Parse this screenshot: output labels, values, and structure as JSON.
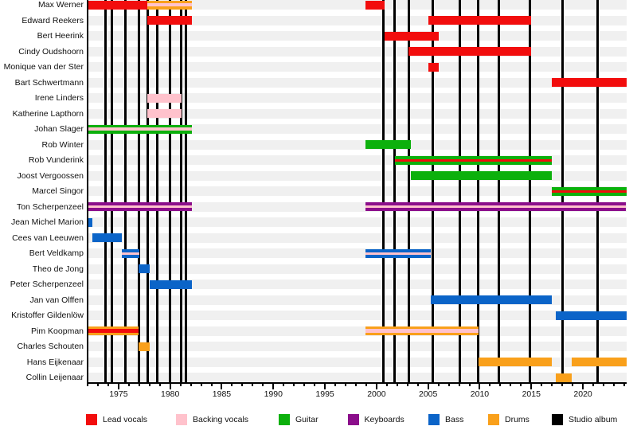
{
  "chart_data": {
    "type": "timeline",
    "description": "Band members timeline (Gantt-style) with studio album release lines",
    "axis": {
      "start_year": 1972,
      "end_year": 2024.2,
      "major_ticks": [
        1975,
        1980,
        1985,
        1990,
        1995,
        2000,
        2005,
        2010,
        2015,
        2020
      ],
      "minor_tick_increment": 1,
      "tick_label_format": "yyyy",
      "orientation": "horizontal"
    },
    "colors": {
      "Lead vocals": "#f20d0d",
      "Backing vocals": "#ffc2cc",
      "Guitar": "#0cb00c",
      "Keyboards": "#8b0e8b",
      "Bass": "#0b64c8",
      "Drums": "#f9a01b",
      "Studio album": "#000000",
      "row_track": "#f0f0f0"
    },
    "legend": [
      {
        "label": "Lead vocals"
      },
      {
        "label": "Backing vocals"
      },
      {
        "label": "Guitar"
      },
      {
        "label": "Keyboards"
      },
      {
        "label": "Bass"
      },
      {
        "label": "Drums"
      },
      {
        "label": "Studio album"
      }
    ],
    "members": [
      {
        "name": "Max Werner",
        "segments": [
          {
            "from": 1972.0,
            "till": 1977.82,
            "role": "Lead vocals"
          },
          {
            "from": 1977.82,
            "till": 1982.1,
            "role": "Drums",
            "stripe": "Backing vocals",
            "stripe_h": 4
          },
          {
            "from": 1998.9,
            "till": 2000.8,
            "role": "Lead vocals"
          }
        ]
      },
      {
        "name": "Edward Reekers",
        "segments": [
          {
            "from": 1977.82,
            "till": 1982.1,
            "role": "Lead vocals"
          },
          {
            "from": 2005.0,
            "till": 2015.0,
            "role": "Lead vocals"
          }
        ]
      },
      {
        "name": "Bert Heerink",
        "segments": [
          {
            "from": 2000.8,
            "till": 2006.0,
            "role": "Lead vocals"
          }
        ]
      },
      {
        "name": "Cindy Oudshoorn",
        "segments": [
          {
            "from": 2003.1,
            "till": 2015.0,
            "role": "Lead vocals"
          }
        ]
      },
      {
        "name": "Monique van der Ster",
        "segments": [
          {
            "from": 2005.0,
            "till": 2006.0,
            "role": "Lead vocals"
          }
        ]
      },
      {
        "name": "Bart Schwertmann",
        "segments": [
          {
            "from": 2016.95,
            "till": 2024.2,
            "role": "Lead vocals"
          }
        ]
      },
      {
        "name": "Irene Linders",
        "segments": [
          {
            "from": 1977.82,
            "till": 1981.12,
            "role": "Backing vocals"
          }
        ]
      },
      {
        "name": "Katherine Lapthorn",
        "segments": [
          {
            "from": 1977.82,
            "till": 1981.12,
            "role": "Backing vocals"
          }
        ]
      },
      {
        "name": "Johan Slager",
        "segments": [
          {
            "from": 1972.0,
            "till": 1982.1,
            "role": "Guitar",
            "stripe": "Backing vocals",
            "stripe_h": 3.5
          }
        ]
      },
      {
        "name": "Rob Winter",
        "segments": [
          {
            "from": 1998.9,
            "till": 2003.3,
            "role": "Guitar"
          }
        ]
      },
      {
        "name": "Rob Vunderink",
        "segments": [
          {
            "from": 2001.8,
            "till": 2016.95,
            "role": "Guitar",
            "stripe": "Lead vocals",
            "stripe_h": 3
          }
        ]
      },
      {
        "name": "Joost Vergoossen",
        "segments": [
          {
            "from": 2003.3,
            "till": 2016.95,
            "role": "Guitar"
          }
        ]
      },
      {
        "name": "Marcel Singor",
        "segments": [
          {
            "from": 2016.95,
            "till": 2024.2,
            "role": "Guitar",
            "stripe": "Lead vocals",
            "stripe_h": 3
          }
        ]
      },
      {
        "name": "Ton Scherpenzeel",
        "segments": [
          {
            "from": 1972.0,
            "till": 1982.1,
            "role": "Keyboards",
            "stripe": "Backing vocals",
            "stripe_h": 3.5
          },
          {
            "from": 1998.9,
            "till": 2024.2,
            "role": "Keyboards",
            "stripe": "Backing vocals",
            "stripe_h": 3.5
          }
        ]
      },
      {
        "name": "Jean Michel Marion",
        "segments": [
          {
            "from": 1972.0,
            "till": 1972.5,
            "role": "Bass"
          }
        ]
      },
      {
        "name": "Cees van Leeuwen",
        "segments": [
          {
            "from": 1972.5,
            "till": 1975.3,
            "role": "Bass"
          }
        ]
      },
      {
        "name": "Bert Veldkamp",
        "segments": [
          {
            "from": 1975.3,
            "till": 1977.0,
            "role": "Bass",
            "stripe": "Backing vocals",
            "stripe_h": 3
          },
          {
            "from": 1998.9,
            "till": 2005.25,
            "role": "Bass",
            "stripe": "Backing vocals",
            "stripe_h": 3
          }
        ]
      },
      {
        "name": "Theo de Jong",
        "segments": [
          {
            "from": 1976.9,
            "till": 1978.05,
            "role": "Bass"
          }
        ]
      },
      {
        "name": "Peter Scherpenzeel",
        "segments": [
          {
            "from": 1978.05,
            "till": 1982.1,
            "role": "Bass"
          }
        ]
      },
      {
        "name": "Jan van Olffen",
        "segments": [
          {
            "from": 2005.25,
            "till": 2017.0,
            "role": "Bass"
          }
        ]
      },
      {
        "name": "Kristoffer Gildenlöw",
        "segments": [
          {
            "from": 2017.4,
            "till": 2024.2,
            "role": "Bass"
          }
        ]
      },
      {
        "name": "Pim Koopman",
        "segments": [
          {
            "from": 1972.0,
            "till": 1976.95,
            "role": "Drums",
            "stripe": "Lead vocals",
            "stripe_h": 5
          },
          {
            "from": 1998.9,
            "till": 2009.85,
            "role": "Drums",
            "stripe": "Backing vocals",
            "stripe_h": 5
          }
        ]
      },
      {
        "name": "Charles Schouten",
        "segments": [
          {
            "from": 1976.9,
            "till": 1978.0,
            "role": "Drums"
          }
        ]
      },
      {
        "name": "Hans Eijkenaar",
        "segments": [
          {
            "from": 2009.85,
            "till": 2017.0,
            "role": "Drums"
          },
          {
            "from": 2018.95,
            "till": 2024.2,
            "role": "Drums"
          }
        ]
      },
      {
        "name": "Collin Leijenaar",
        "segments": [
          {
            "from": 2017.4,
            "till": 2018.95,
            "role": "Drums"
          }
        ]
      }
    ],
    "album_release_lines": [
      1973.7,
      1974.39,
      1975.67,
      1977.01,
      1977.83,
      1978.79,
      1979.99,
      1981.07,
      1981.53,
      2000.68,
      2001.74,
      2003.11,
      2005.48,
      2008.08,
      2009.83,
      2011.85,
      2014.89,
      2018.0,
      2021.43
    ]
  }
}
